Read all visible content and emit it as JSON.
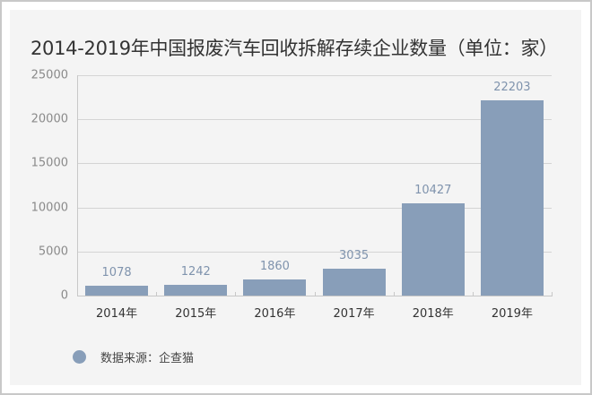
{
  "chart_data": {
    "type": "bar",
    "title": "2014-2019年中国报废汽车回收拆解存续企业数量（单位：家）",
    "categories": [
      "2014年",
      "2015年",
      "2016年",
      "2017年",
      "2018年",
      "2019年"
    ],
    "values": [
      1078,
      1242,
      1860,
      3035,
      10427,
      22203
    ],
    "value_labels": [
      "1078",
      "1242",
      "1860",
      "3035",
      "10427",
      "22203"
    ],
    "xlabel": "",
    "ylabel": "",
    "ylim": [
      0,
      25000
    ],
    "yticks": [
      "0",
      "5000",
      "10000",
      "15000",
      "20000",
      "25000"
    ],
    "grid": true,
    "bar_color": "#889eb9",
    "legend": {
      "position": "bottom-left",
      "entries": [
        "数据来源：企查猫"
      ]
    }
  },
  "title": "2014-2019年中国报废汽车回收拆解存续企业数量（单位：家）",
  "legend_text": "数据来源：企查猫"
}
